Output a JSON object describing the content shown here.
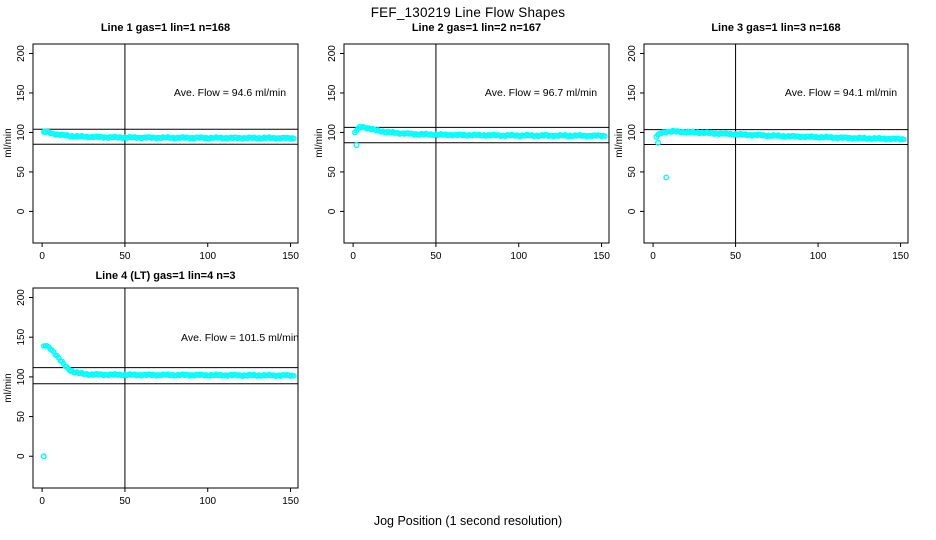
{
  "title": "FEF_130219  Line Flow Shapes",
  "xlabel": "Jog Position (1 second resolution)",
  "ylabel": "ml/min",
  "colors": {
    "points": "#00FFFF",
    "axis": "#000000",
    "background": "#FFFFFF"
  },
  "chart_data": [
    {
      "type": "scatter",
      "title": "Line 1 gas=1 lin=1 n=168",
      "annotation": "Ave. Flow =  94.6  ml/min",
      "ave_flow_ml_min": 94.6,
      "xlim": [
        -5.5,
        154.5
      ],
      "ylim": [
        -40,
        212
      ],
      "xticks": [
        0,
        50,
        100,
        150
      ],
      "yticks": [
        0,
        50,
        100,
        150,
        200
      ],
      "vline_x": 50,
      "hlines_y": [
        104.1,
        85.1
      ],
      "curve": [
        [
          1,
          99.5
        ],
        [
          2,
          100.8
        ],
        [
          3,
          100.5
        ],
        [
          5,
          99.5
        ],
        [
          7,
          98.3
        ],
        [
          10,
          97.2
        ],
        [
          14,
          96.2
        ],
        [
          18,
          95.4
        ],
        [
          24,
          94.7
        ],
        [
          32,
          94.2
        ],
        [
          45,
          93.7
        ],
        [
          60,
          93.5
        ],
        [
          80,
          93.3
        ],
        [
          105,
          93.1
        ],
        [
          130,
          93.0
        ],
        [
          152,
          92.8
        ]
      ],
      "extra_points": [
        [
          1.5,
          101.5
        ]
      ]
    },
    {
      "type": "scatter",
      "title": "Line 2 gas=1 lin=2 n=167",
      "annotation": "Ave. Flow =  96.7  ml/min",
      "ave_flow_ml_min": 96.7,
      "xlim": [
        -5.5,
        154.5
      ],
      "ylim": [
        -40,
        212
      ],
      "xticks": [
        0,
        50,
        100,
        150
      ],
      "yticks": [
        0,
        50,
        100,
        150,
        200
      ],
      "vline_x": 50,
      "hlines_y": [
        106.4,
        87.0
      ],
      "curve": [
        [
          1,
          99
        ],
        [
          2,
          102.5
        ],
        [
          4,
          106.5
        ],
        [
          6,
          107
        ],
        [
          8,
          106.2
        ],
        [
          11,
          104.2
        ],
        [
          15,
          102.3
        ],
        [
          20,
          100.6
        ],
        [
          27,
          99.2
        ],
        [
          36,
          98.1
        ],
        [
          50,
          97.2
        ],
        [
          70,
          96.6
        ],
        [
          95,
          96.2
        ],
        [
          125,
          96.0
        ],
        [
          152,
          95.8
        ]
      ],
      "extra_points": [
        [
          2,
          84
        ]
      ]
    },
    {
      "type": "scatter",
      "title": "Line 3 gas=1 lin=3 n=168",
      "annotation": "Ave. Flow =  94.1  ml/min",
      "ave_flow_ml_min": 94.1,
      "xlim": [
        -5.5,
        154.5
      ],
      "ylim": [
        -40,
        212
      ],
      "xticks": [
        0,
        50,
        100,
        150
      ],
      "yticks": [
        0,
        50,
        100,
        150,
        200
      ],
      "vline_x": 50,
      "hlines_y": [
        103.5,
        84.7
      ],
      "curve": [
        [
          3,
          96.5
        ],
        [
          5,
          99.5
        ],
        [
          8,
          101
        ],
        [
          13,
          101.3
        ],
        [
          20,
          100.6
        ],
        [
          30,
          99.6
        ],
        [
          45,
          98.2
        ],
        [
          60,
          96.8
        ],
        [
          80,
          95.3
        ],
        [
          100,
          94.1
        ],
        [
          120,
          93.0
        ],
        [
          138,
          92.2
        ],
        [
          152,
          91.6
        ]
      ],
      "extra_points": [
        [
          2,
          94.5
        ],
        [
          3,
          87
        ],
        [
          8,
          43
        ]
      ]
    },
    {
      "type": "scatter",
      "title": "Line 4 (LT) gas=1 lin=4 n=3",
      "annotation": "Ave. Flow =  101.5  ml/min",
      "ave_flow_ml_min": 101.5,
      "xlim": [
        -5.5,
        154.5
      ],
      "ylim": [
        -40,
        212
      ],
      "xticks": [
        0,
        50,
        100,
        150
      ],
      "yticks": [
        0,
        50,
        100,
        150,
        200
      ],
      "vline_x": 50,
      "hlines_y": [
        111.7,
        91.4
      ],
      "curve": [
        [
          1,
          138
        ],
        [
          2,
          139.5
        ],
        [
          3,
          138.5
        ],
        [
          4,
          137
        ],
        [
          5,
          135.5
        ],
        [
          7,
          131.5
        ],
        [
          9,
          126.5
        ],
        [
          11,
          121
        ],
        [
          13,
          116
        ],
        [
          15,
          111.5
        ],
        [
          17,
          108.5
        ],
        [
          19,
          106.5
        ],
        [
          22,
          104.8
        ],
        [
          25,
          103.8
        ],
        [
          29,
          103.2
        ],
        [
          35,
          102.9
        ],
        [
          45,
          102.7
        ],
        [
          60,
          102.5
        ],
        [
          80,
          102.4
        ],
        [
          100,
          102.2
        ],
        [
          125,
          102.0
        ],
        [
          152,
          101.8
        ]
      ],
      "extra_points": [
        [
          1,
          0
        ]
      ]
    }
  ]
}
